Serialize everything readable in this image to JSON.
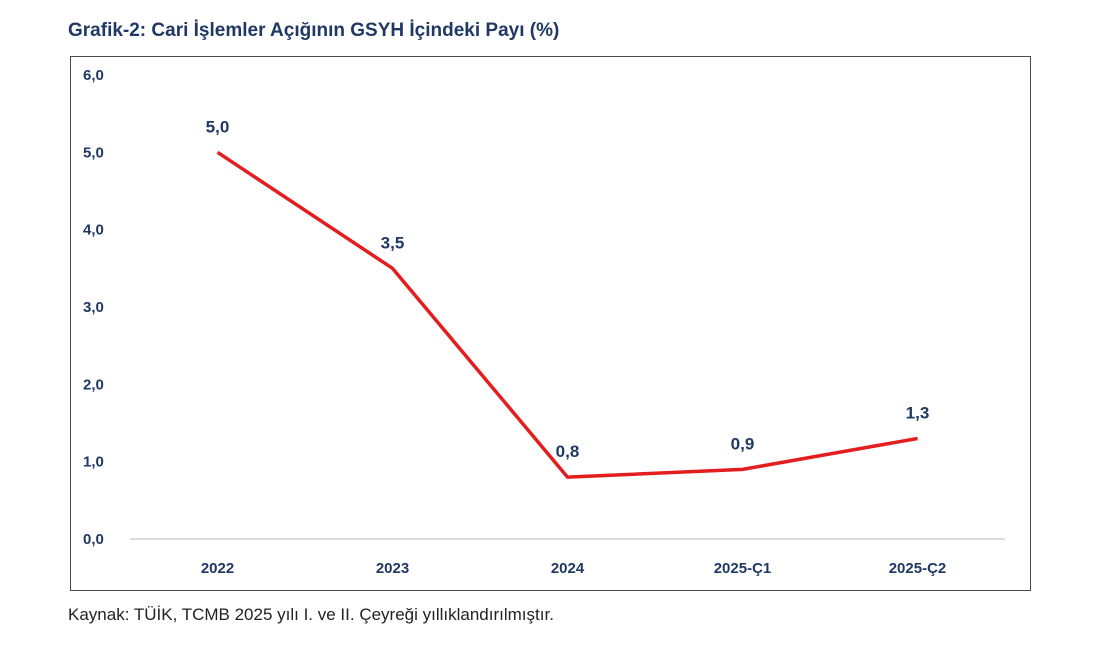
{
  "chart_data": {
    "type": "line",
    "title": "Grafik-2: Cari İşlemler Açığının GSYH İçindeki Payı (%)",
    "categories": [
      "2022",
      "2023",
      "2024",
      "2025-Ç1",
      "2025-Ç2"
    ],
    "series": [
      {
        "values": [
          5.0,
          3.5,
          0.8,
          0.9,
          1.3
        ],
        "labels": [
          "5,0",
          "3,5",
          "0,8",
          "0,9",
          "1,3"
        ],
        "color": "#e41e1e"
      }
    ],
    "yticks": [
      "0,0",
      "1,0",
      "2,0",
      "3,0",
      "4,0",
      "5,0",
      "6,0"
    ],
    "ylim": [
      0,
      6
    ],
    "grid": false,
    "legend": "none",
    "xlabel": "",
    "ylabel": "",
    "source": "Kaynak: TÜİK, TCMB 2025 yılı I. ve II. Çeyreği yıllıklandırılmıştır."
  }
}
